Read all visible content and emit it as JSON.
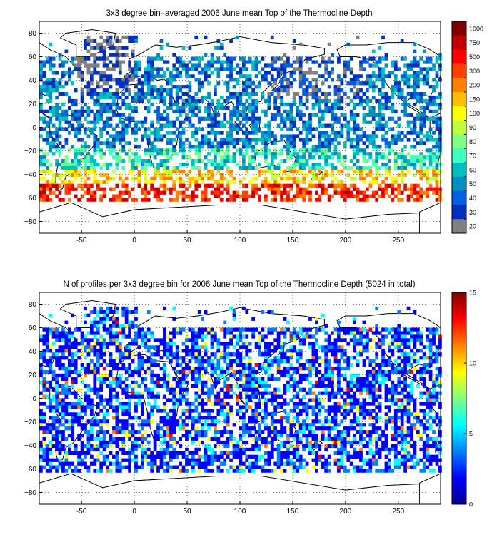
{
  "figure": {
    "panels": [
      {
        "id": "top",
        "title": "3x3 degree bin–averaged 2006 June mean Top of the Thermocline Depth",
        "x_ticks": [
          "-50",
          "0",
          "50",
          "100",
          "150",
          "200",
          "250"
        ],
        "y_ticks": [
          "80",
          "60",
          "40",
          "20",
          "0",
          "−20",
          "−40",
          "−60",
          "−80"
        ],
        "colorbar": {
          "labels": [
            "1000",
            "750",
            "500",
            "300",
            "200",
            "150",
            "100",
            "90",
            "80",
            "70",
            "60",
            "50",
            "40",
            "30",
            "20"
          ],
          "colors": [
            "#7f0000",
            "#bf0000",
            "#ff0000",
            "#ff4000",
            "#ff8000",
            "#ffbf00",
            "#ffff00",
            "#bfff40",
            "#80ff80",
            "#40ffbf",
            "#00bfbf",
            "#0090c0",
            "#0060e0",
            "#0030c0",
            "#808080"
          ]
        }
      },
      {
        "id": "bottom",
        "title": "N of profiles per 3x3 degree bin for 2006 June mean Top of the Thermocline Depth  (5024 in total)",
        "x_ticks": [
          "-50",
          "0",
          "50",
          "100",
          "150",
          "200",
          "250"
        ],
        "y_ticks": [
          "80",
          "60",
          "40",
          "20",
          "0",
          "−20",
          "−40",
          "−60",
          "−80"
        ],
        "colorbar": {
          "labels": [
            "15",
            "10",
            "5",
            "0"
          ],
          "colors": [
            "#00008f",
            "#0000ff",
            "#0080ff",
            "#00ffff",
            "#80ff80",
            "#ffff00",
            "#ff8000",
            "#ff0000",
            "#800000"
          ]
        }
      }
    ]
  }
}
